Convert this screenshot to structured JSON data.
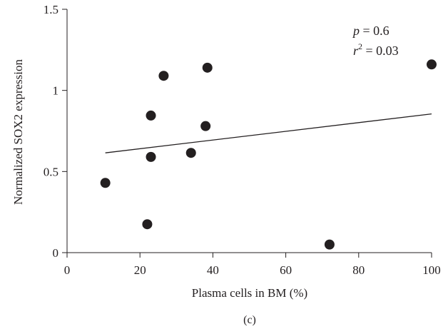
{
  "chart_data": {
    "type": "scatter",
    "xlabel": "Plasma cells in BM (%)",
    "ylabel": "Normalized SOX2 expression",
    "panel_label": "(c)",
    "xlim": [
      0,
      100
    ],
    "ylim": [
      0,
      1.5
    ],
    "x_ticks": [
      0,
      20,
      40,
      60,
      80,
      100
    ],
    "x_tick_labels": [
      "0",
      "20",
      "40",
      "60",
      "80",
      "100"
    ],
    "y_ticks": [
      0,
      0.5,
      1,
      1.5
    ],
    "y_tick_labels": [
      "0",
      "0.5",
      "1",
      "1.5"
    ],
    "grid": false,
    "points": [
      {
        "x": 10.5,
        "y": 0.43
      },
      {
        "x": 22,
        "y": 0.175
      },
      {
        "x": 23,
        "y": 0.845
      },
      {
        "x": 23,
        "y": 0.59
      },
      {
        "x": 26.5,
        "y": 1.09
      },
      {
        "x": 34,
        "y": 0.615
      },
      {
        "x": 38,
        "y": 0.78
      },
      {
        "x": 38.5,
        "y": 1.14
      },
      {
        "x": 72,
        "y": 0.05
      },
      {
        "x": 100,
        "y": 1.16
      }
    ],
    "fit_line": {
      "x": [
        10.5,
        100
      ],
      "y": [
        0.615,
        0.855
      ]
    },
    "annotation": {
      "p_symbol": "p",
      "p_text": " = 0.6",
      "r_symbol": "r",
      "r_exponent": "2",
      "r_text": " = 0.03"
    },
    "colors": {
      "point": "#231f20",
      "line": "#231f20",
      "axis": "#231f20"
    }
  }
}
